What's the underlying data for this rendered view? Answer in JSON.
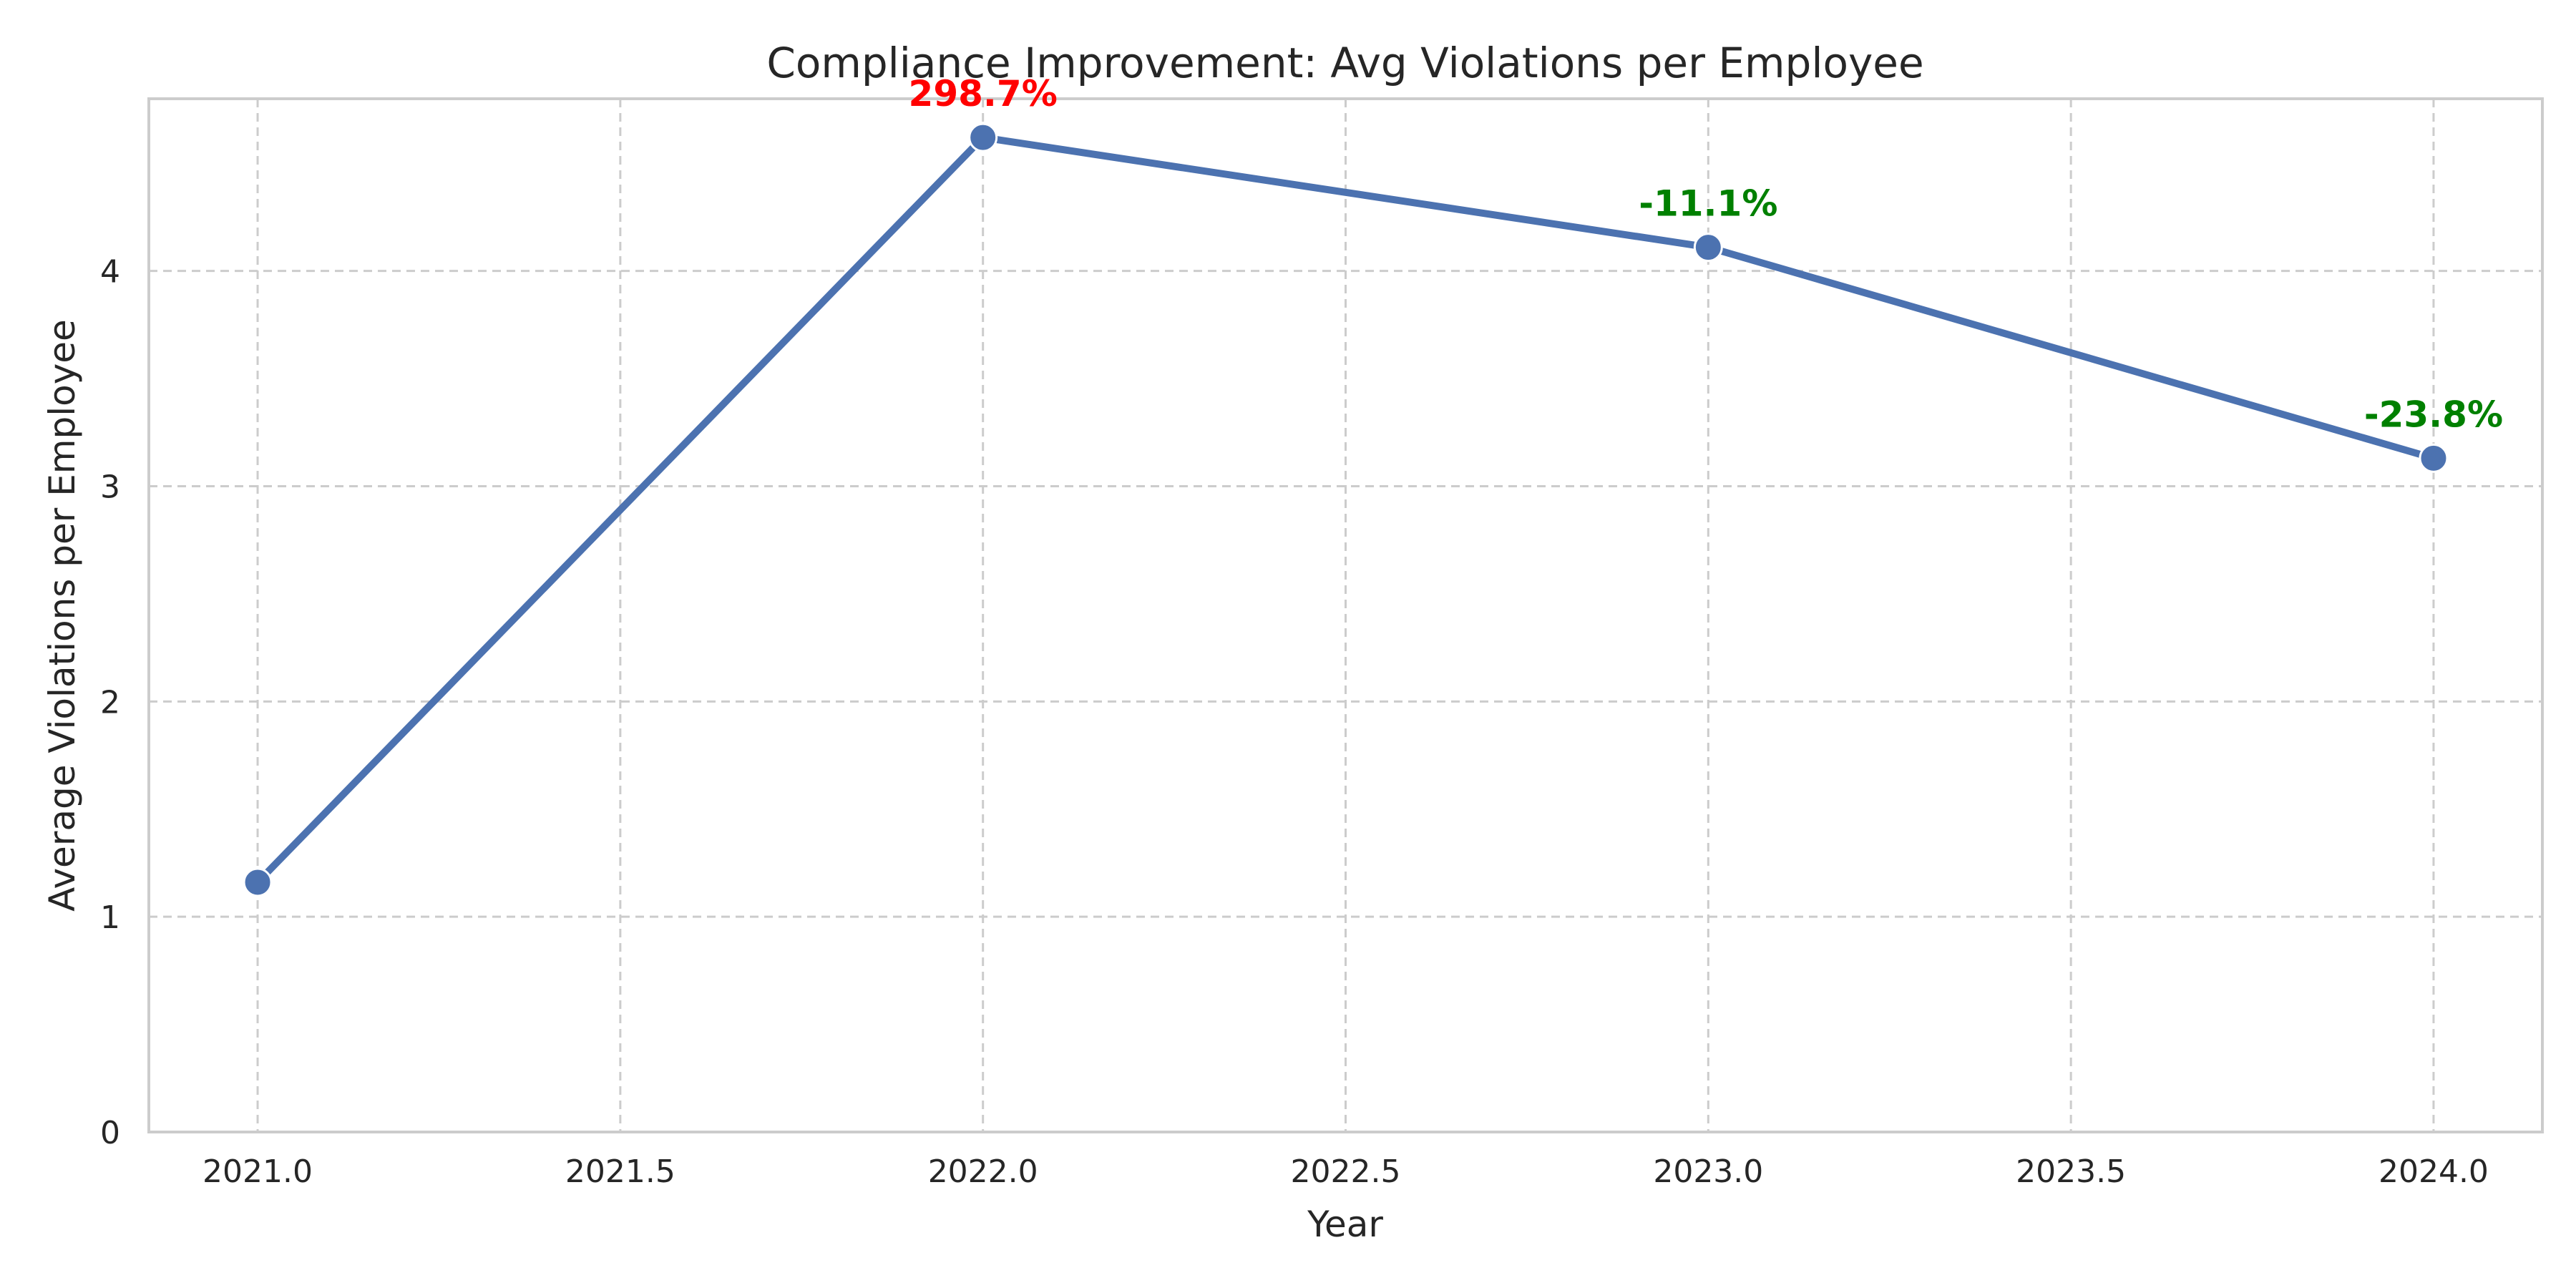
{
  "chart_data": {
    "type": "line",
    "title": "Compliance Improvement: Avg Violations per Employee",
    "xlabel": "Year",
    "ylabel": "Average Violations per Employee",
    "xlim": [
      2020.85,
      2024.15
    ],
    "ylim": [
      0,
      4.8
    ],
    "xticks": [
      2021.0,
      2021.5,
      2022.0,
      2022.5,
      2023.0,
      2023.5,
      2024.0
    ],
    "xtick_labels": [
      "2021.0",
      "2021.5",
      "2022.0",
      "2022.5",
      "2023.0",
      "2023.5",
      "2024.0"
    ],
    "yticks": [
      0,
      1,
      2,
      3,
      4
    ],
    "ytick_labels": [
      "0",
      "1",
      "2",
      "3",
      "4"
    ],
    "grid": true,
    "series": [
      {
        "color": "#4c72b0",
        "x": [
          2021,
          2022,
          2023,
          2024
        ],
        "y": [
          1.16,
          4.62,
          4.11,
          3.13
        ]
      }
    ],
    "annotations": [
      {
        "x": 2022,
        "y": 4.62,
        "text": "298.7%",
        "color": "#ff0000"
      },
      {
        "x": 2023,
        "y": 4.11,
        "text": "-11.1%",
        "color": "#008000"
      },
      {
        "x": 2024,
        "y": 3.13,
        "text": "-23.8%",
        "color": "#008000"
      }
    ]
  }
}
